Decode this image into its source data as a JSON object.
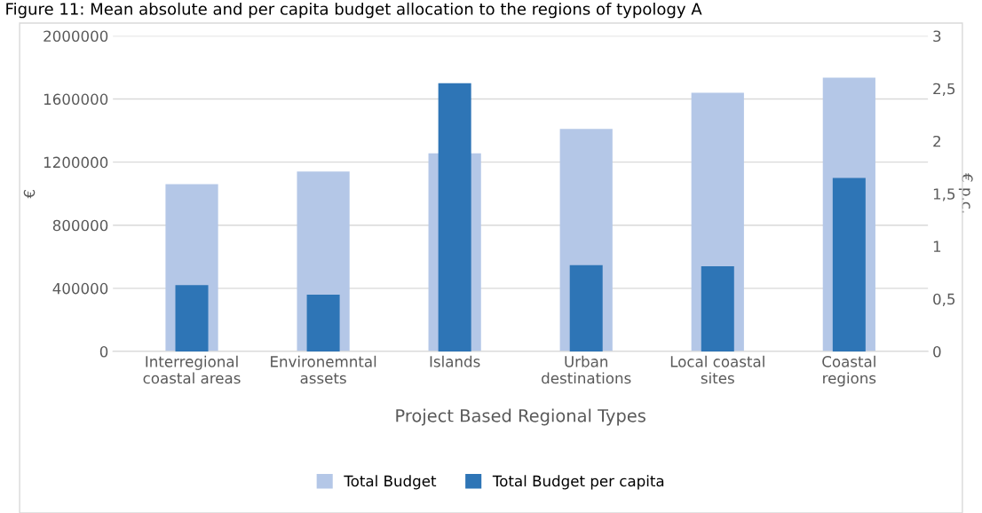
{
  "chart_data": {
    "type": "bar",
    "title": "Figure 11: Mean absolute and per capita budget allocation to the regions of typology A",
    "categories": [
      "Interregional\ncoastal areas",
      "Environemntal\nassets",
      "Islands",
      "Urban\ndestinations",
      "Local coastal\nsites",
      "Coastal\nregions"
    ],
    "series": [
      {
        "name": "Total Budget",
        "color": "#b4c7e7",
        "values": [
          1060000,
          1140000,
          1255000,
          1410000,
          1640000,
          1735000
        ]
      },
      {
        "name": "Total Budget per capita",
        "color": "#2e75b6",
        "axis": "y2",
        "values": [
          0.63,
          0.54,
          2.55,
          0.82,
          0.81,
          1.65
        ]
      }
    ],
    "xlabel": "Project Based Regional Types",
    "ylabel": "€",
    "y2label": "€ p.c.",
    "ylim": [
      0,
      2000000
    ],
    "yticks": [
      0,
      400000,
      800000,
      1200000,
      1600000,
      2000000
    ],
    "y2lim": [
      0,
      3
    ],
    "y2ticks": [
      0,
      {
        "value": 0.5,
        "label": "0,5"
      },
      1,
      {
        "value": 1.5,
        "label": "1,5"
      },
      2,
      {
        "value": 2.5,
        "label": "2,5"
      },
      3
    ],
    "grid": "y",
    "legend": "bottom"
  }
}
